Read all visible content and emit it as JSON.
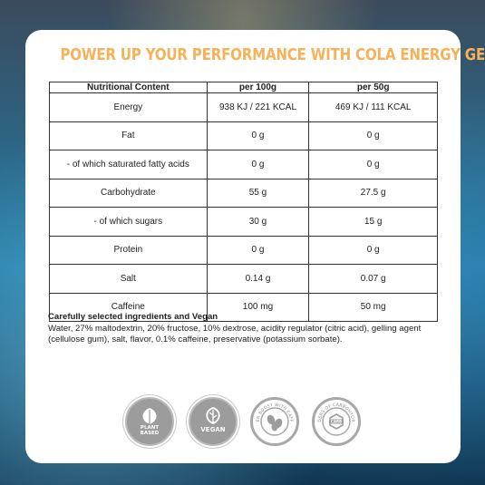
{
  "headline": "POWER UP YOUR PERFORMANCE WITH COLA ENERGY GEL",
  "table": {
    "headers": [
      "Nutritional Content",
      "per 100g",
      "per 50g"
    ],
    "rows": [
      [
        "Energy",
        "938 KJ / 221 KCAL",
        "469 KJ / 111 KCAL"
      ],
      [
        "Fat",
        "0 g",
        "0 g"
      ],
      [
        "- of which saturated fatty acids",
        "0 g",
        "0 g"
      ],
      [
        "Carbohydrate",
        "55 g",
        "27.5 g"
      ],
      [
        "- of which sugars",
        "30 g",
        "15 g"
      ],
      [
        "Protein",
        "0 g",
        "0 g"
      ],
      [
        "Salt",
        "0.14 g",
        "0.07 g"
      ],
      [
        "Caffeine",
        "100 mg",
        "50 mg"
      ]
    ]
  },
  "ingredients": {
    "title": "Carefully selected ingredients and Vegan",
    "text": "Water, 27% maltodextrin, 20% fructose, 10% dextrose, acidity regulator (citric acid), gelling agent (cellulose gum), salt, flavor, 0.1% caffeine, preservative (potassium sorbate)."
  },
  "badges": {
    "plant_based": {
      "line1": "PLANT",
      "line2": "BASED",
      "icon": "leaf-icon"
    },
    "vegan": {
      "label": "VEGAN",
      "icon": "vegan-leaf-icon"
    },
    "caffeine": {
      "arc": "POWER BOOST WITH CAFFEINE",
      "icon": "coffee-bean-icon"
    },
    "carbs": {
      "arc": "WONDERS OF CARBOHYDRATES",
      "label": "CARB",
      "icon": "carb-molecule-icon"
    }
  },
  "colors": {
    "headline": "#f4b35a",
    "badge_gray": "#9c9c9c",
    "card": "#ffffff"
  }
}
